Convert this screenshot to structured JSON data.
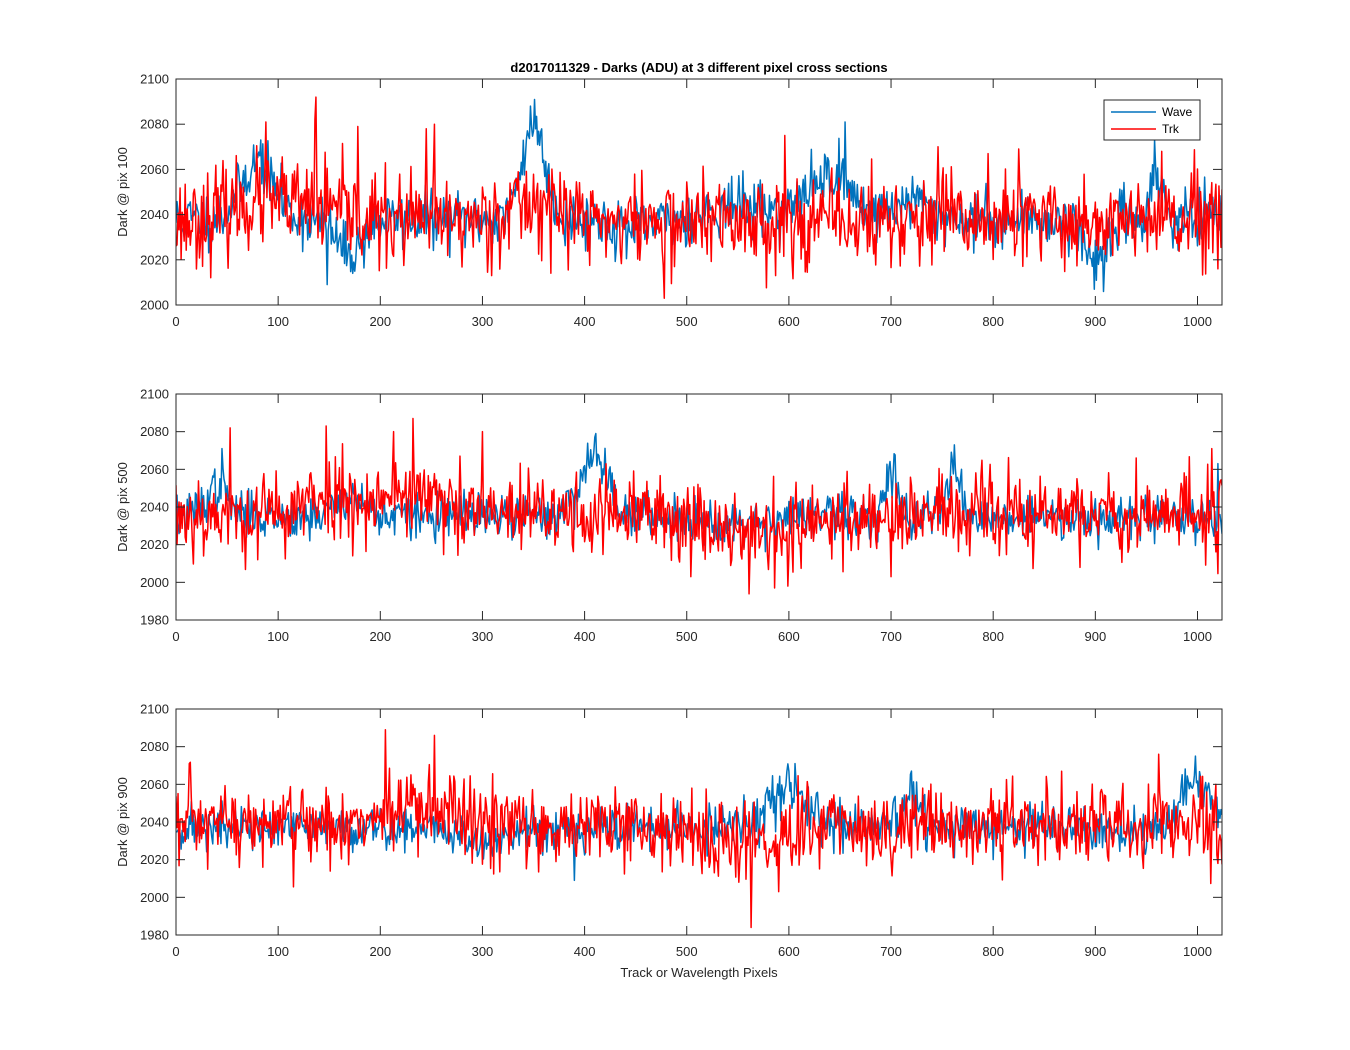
{
  "title": "d2017011329 - Darks (ADU) at 3 different pixel cross sections",
  "xlabel": "Track or Wavelength Pixels",
  "legend": {
    "placement": "top-right",
    "entries": [
      "Wave",
      "Trk"
    ]
  },
  "colors": {
    "Wave": "#0072BD",
    "Trk": "#FF0000",
    "axes": "#262626"
  },
  "chart_data": [
    {
      "type": "line",
      "ylabel": "Dark @ pix 100",
      "xlim": [
        0,
        1024
      ],
      "ylim": [
        2000,
        2100
      ],
      "xticks": [
        0,
        100,
        200,
        300,
        400,
        500,
        600,
        700,
        800,
        900,
        1000
      ],
      "yticks": [
        2000,
        2020,
        2040,
        2060,
        2080,
        2100
      ],
      "grid": false,
      "x_step": 1,
      "series": [
        {
          "name": "Wave",
          "baseline": 2038,
          "noise": 6,
          "seed": 11,
          "bumps": [
            [
              80,
              25,
              22
            ],
            [
              170,
              -15,
              18
            ],
            [
              350,
              42,
              16
            ],
            [
              450,
              -4,
              30
            ],
            [
              550,
              6,
              40
            ],
            [
              640,
              20,
              30
            ],
            [
              720,
              8,
              25
            ],
            [
              900,
              -18,
              15
            ],
            [
              960,
              20,
              8
            ]
          ],
          "spikes": [
            [
              347,
              2088
            ],
            [
              83,
              2073
            ],
            [
              148,
              2009
            ],
            [
              655,
              2081
            ],
            [
              908,
              2006
            ],
            [
              958,
              2073
            ]
          ]
        },
        {
          "name": "Trk",
          "baseline": 2037,
          "noise": 10,
          "seed": 23,
          "bumps": [
            [
              80,
              8,
              40
            ],
            [
              140,
              5,
              40
            ],
            [
              350,
              8,
              40
            ]
          ],
          "spikes": [
            [
              137,
              2092
            ],
            [
              136,
              2082
            ],
            [
              88,
              2081
            ],
            [
              178,
              2079
            ],
            [
              245,
              2078
            ],
            [
              253,
              2080
            ],
            [
              478,
              2003
            ],
            [
              596,
              2075
            ],
            [
              746,
              2070
            ],
            [
              795,
              2067
            ],
            [
              825,
              2069
            ],
            [
              965,
              2068
            ],
            [
              1020,
              2016
            ]
          ]
        }
      ]
    },
    {
      "type": "line",
      "ylabel": "Dark @ pix 500",
      "xlim": [
        0,
        1024
      ],
      "ylim": [
        1980,
        2100
      ],
      "xticks": [
        0,
        100,
        200,
        300,
        400,
        500,
        600,
        700,
        800,
        900,
        1000
      ],
      "yticks": [
        1980,
        2000,
        2020,
        2040,
        2060,
        2080,
        2100
      ],
      "grid": false,
      "x_step": 1,
      "series": [
        {
          "name": "Wave",
          "baseline": 2035,
          "noise": 6,
          "seed": 37,
          "bumps": [
            [
              40,
              15,
              15
            ],
            [
              170,
              10,
              20
            ],
            [
              410,
              32,
              20
            ],
            [
              550,
              -3,
              40
            ],
            [
              700,
              22,
              10
            ],
            [
              760,
              25,
              10
            ]
          ],
          "spikes": [
            [
              411,
              2079
            ],
            [
              762,
              2073
            ],
            [
              45,
              2071
            ],
            [
              1020,
              2063
            ]
          ]
        },
        {
          "name": "Trk",
          "baseline": 2036,
          "noise": 11,
          "seed": 53,
          "bumps": [
            [
              160,
              10,
              40
            ],
            [
              230,
              12,
              30
            ],
            [
              580,
              -10,
              60
            ]
          ],
          "spikes": [
            [
              232,
              2087
            ],
            [
              147,
              2083
            ],
            [
              213,
              2080
            ],
            [
              300,
              2080
            ],
            [
              53,
              2082
            ],
            [
              586,
              1997
            ],
            [
              700,
              2003
            ],
            [
              504,
              2003
            ],
            [
              940,
              2066
            ],
            [
              1014,
              2071
            ]
          ]
        }
      ]
    },
    {
      "type": "line",
      "ylabel": "Dark @ pix 900",
      "xlim": [
        0,
        1024
      ],
      "ylim": [
        1980,
        2100
      ],
      "xticks": [
        0,
        100,
        200,
        300,
        400,
        500,
        600,
        700,
        800,
        900,
        1000
      ],
      "yticks": [
        1980,
        2000,
        2020,
        2040,
        2060,
        2080,
        2100
      ],
      "grid": false,
      "x_step": 1,
      "series": [
        {
          "name": "Wave",
          "baseline": 2037,
          "noise": 6,
          "seed": 71,
          "bumps": [
            [
              300,
              -8,
              30
            ],
            [
              600,
              22,
              25
            ],
            [
              720,
              15,
              12
            ],
            [
              1000,
              25,
              20
            ],
            [
              930,
              -5,
              20
            ]
          ],
          "spikes": [
            [
              606,
              2071
            ],
            [
              998,
              2075
            ],
            [
              720,
              2067
            ],
            [
              390,
              2009
            ]
          ]
        },
        {
          "name": "Trk",
          "baseline": 2038,
          "noise": 11,
          "seed": 97,
          "bumps": [
            [
              230,
              8,
              50
            ],
            [
              560,
              -8,
              60
            ]
          ],
          "spikes": [
            [
              205,
              2089
            ],
            [
              253,
              2086
            ],
            [
              563,
              1984
            ],
            [
              590,
              2003
            ],
            [
              13,
              2071
            ],
            [
              962,
              2076
            ],
            [
              1018,
              2060
            ],
            [
              1020,
              2018
            ]
          ]
        }
      ]
    }
  ]
}
